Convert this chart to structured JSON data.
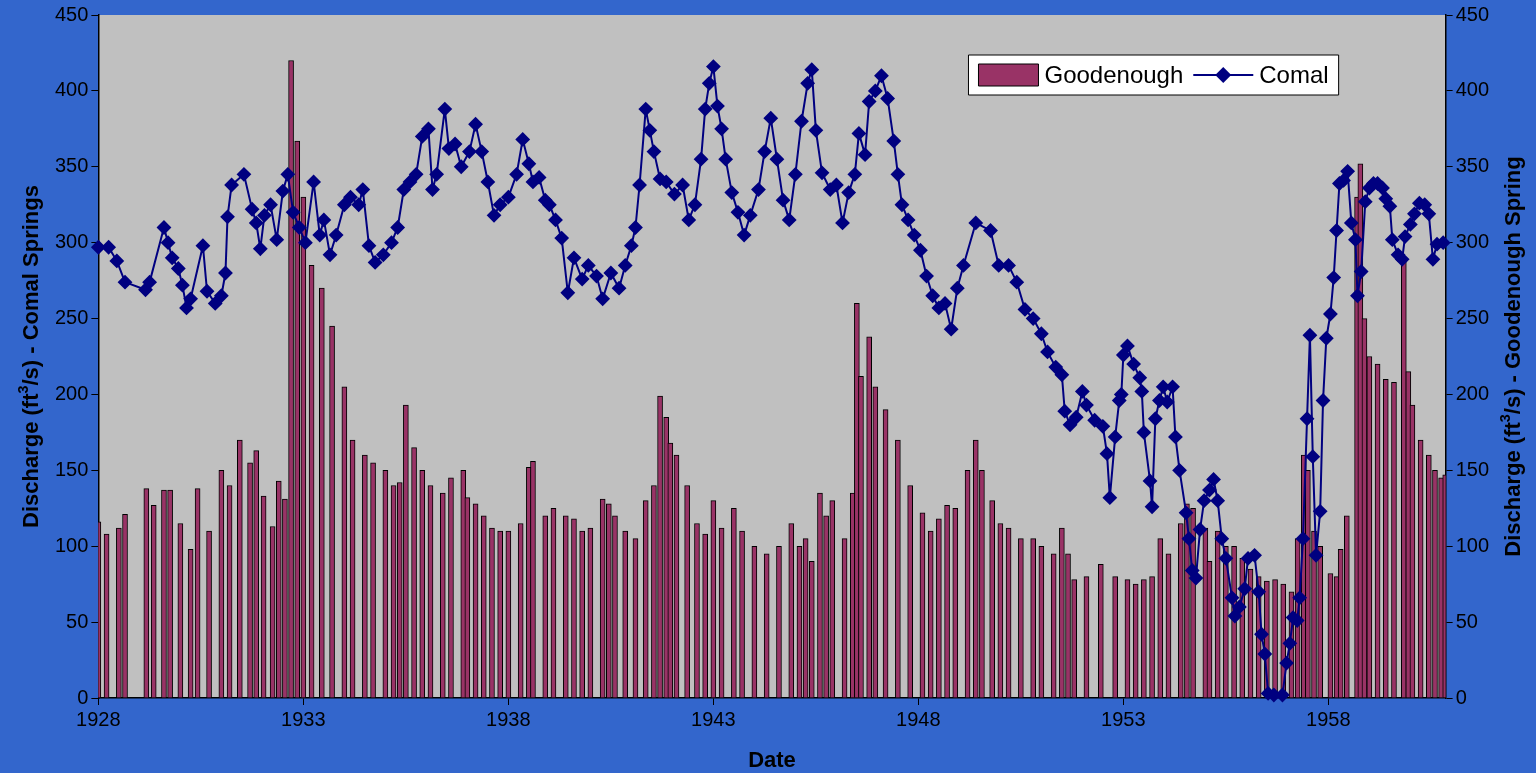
{
  "chart_data": {
    "type": "bar",
    "xlabel": "Date",
    "ylabel": "Discharge (ft$^{3}$/s) - Comal Springs",
    "y2label": "Discharge (ft$^{3}$/s) - Goodenough Spring",
    "xlim": [
      1928,
      1960.86
    ],
    "xticks": [
      1928,
      1933,
      1938,
      1943,
      1948,
      1953,
      1958
    ],
    "ylim": [
      0,
      450
    ],
    "yticks": [
      0,
      50,
      100,
      150,
      200,
      250,
      300,
      350,
      400,
      450
    ],
    "y2lim": [
      0,
      450
    ],
    "y2ticks": [
      0,
      50,
      100,
      150,
      200,
      250,
      300,
      350,
      400,
      450
    ],
    "grid": false,
    "legend": "top right",
    "marker": "diamond",
    "line_style": "solid",
    "series": [
      {
        "name": "Goodenough",
        "axis": "y2",
        "color": "#993366",
        "x": [
          1928.0,
          1928.2,
          1928.5,
          1928.65,
          1929.17,
          1929.35,
          1929.6,
          1929.75,
          1930.0,
          1930.25,
          1930.42,
          1930.7,
          1931.0,
          1931.2,
          1931.45,
          1931.7,
          1931.85,
          1932.03,
          1932.25,
          1932.4,
          1932.55,
          1932.7,
          1932.85,
          1933.0,
          1933.2,
          1933.45,
          1933.7,
          1934.0,
          1934.2,
          1934.5,
          1934.7,
          1935.0,
          1935.2,
          1935.35,
          1935.5,
          1935.7,
          1935.9,
          1936.1,
          1936.4,
          1936.6,
          1936.9,
          1937.0,
          1937.2,
          1937.4,
          1937.6,
          1937.8,
          1938.0,
          1938.3,
          1938.5,
          1938.6,
          1938.9,
          1939.1,
          1939.4,
          1939.6,
          1939.8,
          1940.0,
          1940.3,
          1940.45,
          1940.6,
          1940.85,
          1941.1,
          1941.35,
          1941.55,
          1941.7,
          1941.85,
          1941.95,
          1942.1,
          1942.36,
          1942.6,
          1942.8,
          1943.0,
          1943.2,
          1943.5,
          1943.7,
          1944.0,
          1944.3,
          1944.6,
          1944.9,
          1945.1,
          1945.25,
          1945.4,
          1945.6,
          1945.75,
          1945.9,
          1946.2,
          1946.4,
          1946.5,
          1946.6,
          1946.8,
          1946.95,
          1947.2,
          1947.5,
          1947.8,
          1948.1,
          1948.3,
          1948.5,
          1948.7,
          1948.9,
          1949.2,
          1949.4,
          1949.55,
          1949.8,
          1950.0,
          1950.2,
          1950.5,
          1950.8,
          1951.0,
          1951.3,
          1951.5,
          1951.65,
          1951.8,
          1952.1,
          1952.45,
          1952.8,
          1953.1,
          1953.3,
          1953.5,
          1953.7,
          1953.9,
          1954.1,
          1954.4,
          1954.55,
          1954.7,
          1955.0,
          1955.1,
          1955.3,
          1955.5,
          1955.7,
          1955.9,
          1956.1,
          1956.3,
          1956.5,
          1956.7,
          1956.9,
          1957.1,
          1957.25,
          1957.4,
          1957.5,
          1957.65,
          1957.8,
          1958.05,
          1958.2,
          1958.3,
          1958.45,
          1958.7,
          1958.78,
          1958.88,
          1959.0,
          1959.2,
          1959.4,
          1959.6,
          1959.84,
          1959.95,
          1960.05,
          1960.25,
          1960.45,
          1960.6,
          1960.75,
          1960.85
        ],
        "values": [
          116,
          108,
          112,
          121,
          138,
          127,
          137,
          137,
          115,
          98,
          138,
          110,
          150,
          140,
          170,
          155,
          163,
          133,
          113,
          143,
          131,
          420,
          367,
          330,
          285,
          270,
          245,
          205,
          170,
          160,
          155,
          150,
          140,
          142,
          193,
          165,
          150,
          140,
          135,
          145,
          150,
          132,
          128,
          120,
          112,
          110,
          110,
          115,
          152,
          156,
          120,
          125,
          120,
          118,
          110,
          112,
          131,
          128,
          120,
          110,
          105,
          130,
          140,
          199,
          185,
          168,
          160,
          140,
          115,
          108,
          130,
          112,
          125,
          110,
          100,
          95,
          100,
          115,
          100,
          105,
          90,
          135,
          120,
          130,
          105,
          135,
          260,
          212,
          238,
          205,
          190,
          170,
          140,
          122,
          110,
          118,
          127,
          125,
          150,
          170,
          150,
          130,
          115,
          112,
          105,
          105,
          100,
          95,
          112,
          95,
          78,
          80,
          88,
          80,
          78,
          75,
          78,
          80,
          105,
          95,
          115,
          128,
          125,
          112,
          90,
          110,
          100,
          100,
          92,
          85,
          80,
          77,
          78,
          75,
          70,
          105,
          160,
          150,
          110,
          100,
          82,
          80,
          98,
          120,
          330,
          352,
          250,
          225,
          220,
          210,
          208,
          288,
          215,
          193,
          170,
          160,
          150,
          145,
          147
        ]
      },
      {
        "name": "Comal",
        "type": "line",
        "color": "#000080",
        "x": [
          1928.0,
          1928.25,
          1928.45,
          1928.65,
          1929.15,
          1929.25,
          1929.6,
          1929.7,
          1929.8,
          1929.95,
          1930.05,
          1930.15,
          1930.25,
          1930.55,
          1930.65,
          1930.85,
          1931.0,
          1931.1,
          1931.15,
          1931.25,
          1931.55,
          1931.75,
          1931.85,
          1931.95,
          1932.05,
          1932.2,
          1932.35,
          1932.5,
          1932.62,
          1932.75,
          1932.9,
          1933.05,
          1933.25,
          1933.4,
          1933.5,
          1933.65,
          1933.8,
          1934.0,
          1934.15,
          1934.35,
          1934.45,
          1934.6,
          1934.75,
          1934.95,
          1935.15,
          1935.3,
          1935.45,
          1935.6,
          1935.75,
          1935.9,
          1936.05,
          1936.15,
          1936.25,
          1936.45,
          1936.55,
          1936.7,
          1936.85,
          1937.05,
          1937.2,
          1937.35,
          1937.5,
          1937.65,
          1937.8,
          1938.0,
          1938.2,
          1938.35,
          1938.5,
          1938.6,
          1938.75,
          1938.9,
          1939.0,
          1939.15,
          1939.3,
          1939.45,
          1939.6,
          1939.8,
          1939.95,
          1940.15,
          1940.3,
          1940.5,
          1940.7,
          1940.85,
          1941.0,
          1941.1,
          1941.2,
          1941.35,
          1941.45,
          1941.55,
          1941.7,
          1941.85,
          1942.05,
          1942.25,
          1942.4,
          1942.55,
          1942.7,
          1942.8,
          1942.9,
          1943.0,
          1943.1,
          1943.2,
          1943.3,
          1943.45,
          1943.6,
          1943.75,
          1943.9,
          1944.1,
          1944.25,
          1944.4,
          1944.55,
          1944.7,
          1944.85,
          1945.0,
          1945.15,
          1945.3,
          1945.4,
          1945.5,
          1945.65,
          1945.85,
          1946.0,
          1946.15,
          1946.3,
          1946.45,
          1946.55,
          1946.7,
          1946.8,
          1946.95,
          1947.1,
          1947.25,
          1947.4,
          1947.5,
          1947.6,
          1947.75,
          1947.9,
          1948.05,
          1948.2,
          1948.35,
          1948.5,
          1948.65,
          1948.8,
          1948.95,
          1949.1,
          1949.4,
          1949.76,
          1949.96,
          1950.2,
          1950.4,
          1950.6,
          1950.8,
          1951.0,
          1951.15,
          1951.35,
          1951.5,
          1951.57,
          1951.7,
          1951.85,
          1952.0,
          1952.1,
          1952.3,
          1952.5,
          1952.6,
          1952.67,
          1952.8,
          1952.9,
          1952.95,
          1953.0,
          1953.1,
          1953.25,
          1953.4,
          1953.45,
          1953.5,
          1953.65,
          1953.7,
          1953.78,
          1953.88,
          1953.97,
          1954.07,
          1954.2,
          1954.27,
          1954.37,
          1954.53,
          1954.6,
          1954.68,
          1954.77,
          1954.87,
          1954.97,
          1955.1,
          1955.2,
          1955.3,
          1955.4,
          1955.5,
          1955.65,
          1955.72,
          1955.83,
          1955.96,
          1956.04,
          1956.2,
          1956.3,
          1956.37,
          1956.45,
          1956.53,
          1956.67,
          1956.88,
          1956.98,
          1957.06,
          1957.14,
          1957.24,
          1957.3,
          1957.38,
          1957.48,
          1957.55,
          1957.62,
          1957.7,
          1957.8,
          1957.87,
          1957.95,
          1958.05,
          1958.13,
          1958.2,
          1958.27,
          1958.37,
          1958.47,
          1958.56,
          1958.66,
          1958.71,
          1958.8,
          1958.9,
          1959.0,
          1959.1,
          1959.2,
          1959.32,
          1959.4,
          1959.5,
          1959.56,
          1959.7,
          1959.8,
          1959.87,
          1960.0,
          1960.1,
          1960.22,
          1960.35,
          1960.45,
          1960.55,
          1960.65,
          1960.8
        ],
        "values": [
          297,
          297,
          288,
          274,
          269,
          274,
          310,
          300,
          290,
          283,
          272,
          257,
          263,
          298,
          268,
          260,
          265,
          280,
          317,
          338,
          345,
          322,
          313,
          296,
          318,
          325,
          302,
          334,
          345,
          320,
          310,
          300,
          340,
          305,
          315,
          292,
          305,
          325,
          330,
          325,
          335,
          298,
          287,
          292,
          300,
          310,
          335,
          340,
          345,
          370,
          375,
          335,
          345,
          388,
          362,
          365,
          350,
          360,
          378,
          360,
          340,
          318,
          325,
          330,
          345,
          368,
          352,
          340,
          343,
          328,
          325,
          315,
          303,
          267,
          290,
          276,
          285,
          278,
          263,
          280,
          270,
          285,
          298,
          310,
          338,
          388,
          374,
          360,
          342,
          340,
          332,
          338,
          315,
          325,
          355,
          388,
          405,
          416,
          390,
          375,
          355,
          333,
          320,
          305,
          318,
          335,
          360,
          382,
          355,
          328,
          315,
          345,
          380,
          405,
          414,
          374,
          346,
          335,
          338,
          313,
          333,
          345,
          372,
          358,
          393,
          400,
          410,
          395,
          367,
          345,
          325,
          315,
          305,
          295,
          278,
          265,
          257,
          260,
          243,
          270,
          285,
          313,
          308,
          285,
          285,
          274,
          256,
          250,
          240,
          228,
          218,
          213,
          189,
          180,
          185,
          202,
          193,
          183,
          179,
          161,
          132,
          172,
          196,
          200,
          226,
          232,
          220,
          211,
          202,
          175,
          143,
          126,
          184,
          196,
          205,
          195,
          205,
          172,
          150,
          122,
          105,
          84,
          79,
          111,
          130,
          137,
          144,
          130,
          105,
          92,
          66,
          54,
          60,
          72,
          92,
          94,
          70,
          42,
          29,
          3,
          2,
          2,
          23,
          36,
          53,
          51,
          66,
          105,
          184,
          239,
          159,
          94,
          123,
          196,
          237,
          253,
          277,
          308,
          339,
          341,
          347,
          313,
          302,
          265,
          281,
          327,
          336,
          339,
          339,
          336,
          329,
          324,
          302,
          292,
          289,
          304,
          312,
          319,
          326,
          325,
          319,
          289,
          299,
          300
        ]
      }
    ]
  }
}
